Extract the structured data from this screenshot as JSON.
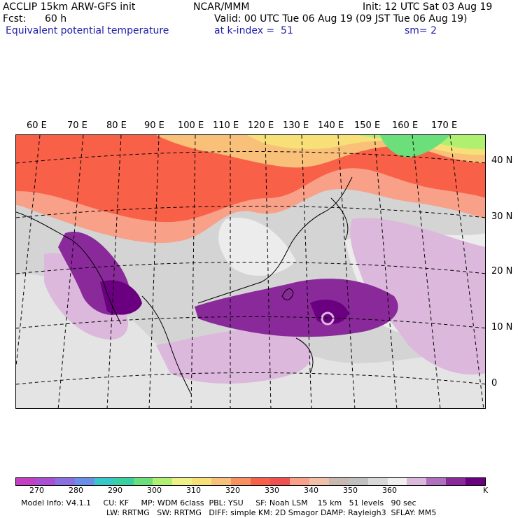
{
  "header": {
    "model": "ACCLIP 15km ARW-GFS init",
    "center": "NCAR/MMM",
    "init": "Init: 12 UTC Sat 03 Aug 19",
    "fcst_label": "Fcst:",
    "fcst_value": "60 h",
    "valid": "Valid: 00 UTC Tue 06 Aug 19 (09 JST Tue 06 Aug 19)",
    "field": "Equivalent potential temperature",
    "level": "at k-index =  51",
    "smoothing": "sm= 2"
  },
  "map": {
    "lon_labels": [
      "60 E",
      "70 E",
      "80 E",
      "90 E",
      "100 E",
      "110 E",
      "120 E",
      "130 E",
      "140 E",
      "150 E",
      "160 E",
      "170 E"
    ],
    "lat_labels": [
      "40 N",
      "30 N",
      "20 N",
      "10 N",
      "0"
    ]
  },
  "colorbar": {
    "colors": [
      "#c33fc3",
      "#a94fd6",
      "#8a6fe0",
      "#6a8fe8",
      "#35c8c8",
      "#38d0a0",
      "#6be07a",
      "#b0f070",
      "#f0f088",
      "#f8e078",
      "#f8c078",
      "#f89060",
      "#f86048",
      "#f05050",
      "#f8a088",
      "#f0c0a8",
      "#c8b8b0",
      "#c0c0c0",
      "#d8d8d8",
      "#f0f0f0",
      "#dcb8dc",
      "#b070c0",
      "#8a2a9a",
      "#6a0080"
    ],
    "ticks": [
      "270",
      "280",
      "290",
      "300",
      "310",
      "320",
      "330",
      "340",
      "350",
      "360"
    ],
    "unit": "K"
  },
  "model_info": {
    "line1": "Model Info: V4.1.1     CU: KF     MP: WDM 6class  PBL: YSU     SF: Noah LSM    15 km   51 levels   90 sec",
    "line2": "LW: RRTMG   SW: RRTMG   DIFF: simple KM: 2D Smagor DAMP: Rayleigh3  SFLAY: MM5"
  }
}
